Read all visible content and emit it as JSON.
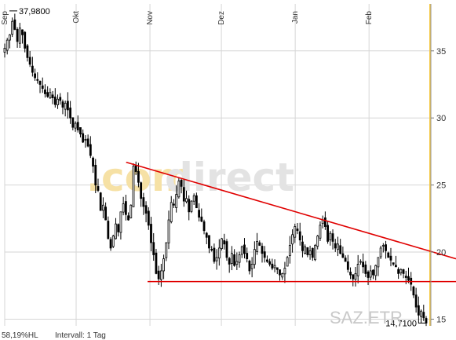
{
  "colors": {
    "candle": "#000000",
    "grid": "#d6d6d6",
    "trendline": "#e00000",
    "now_marker": "#f5c842",
    "watermark_a": "#f6e1a5",
    "watermark_b": "#e3e3e3"
  },
  "watermark": {
    "part1": ".com",
    "part2": "direct"
  },
  "symbol_label": "SAZ.ETR",
  "footer": {
    "performance": "58,19%HL",
    "interval": "Intervall: 1 Tag"
  },
  "chart_data": {
    "type": "candlestick",
    "title": "",
    "xlabel": "",
    "ylabel": "",
    "ylim": [
      14.5,
      38.5
    ],
    "y_ticks": [
      15,
      20,
      25,
      30,
      35
    ],
    "y_tick_labels": [
      "15",
      "20",
      "25",
      "30",
      "35"
    ],
    "x_range_days": [
      0,
      177
    ],
    "month_ticks": [
      {
        "label": "Sep",
        "day": 0
      },
      {
        "label": "Okt",
        "day": 30
      },
      {
        "label": "Nov",
        "day": 61
      },
      {
        "label": "Dez",
        "day": 91
      },
      {
        "label": "Jan",
        "day": 122
      },
      {
        "label": "Feb",
        "day": 153
      }
    ],
    "high_label": "37,9800",
    "high_value": 37.98,
    "low_label": "14,7100",
    "low_value": 14.71,
    "trendlines": [
      {
        "name": "resistance",
        "x": [
          51,
          177
        ],
        "y": [
          26.7,
          19.5
        ]
      },
      {
        "name": "support",
        "x": [
          60,
          177
        ],
        "y": [
          17.8,
          17.8
        ]
      }
    ],
    "closes": [
      35.2,
      35.8,
      36.2,
      37.2,
      36.6,
      35.7,
      36.7,
      36.2,
      35.2,
      34.5,
      34.0,
      33.4,
      33.0,
      32.8,
      32.5,
      32.2,
      31.8,
      31.6,
      31.9,
      31.5,
      31.0,
      31.4,
      31.3,
      30.8,
      31.1,
      30.6,
      30.0,
      29.3,
      29.6,
      29.1,
      28.8,
      28.2,
      28.4,
      27.9,
      27.2,
      26.4,
      25.0,
      24.6,
      23.1,
      23.5,
      22.4,
      21.0,
      20.3,
      21.2,
      22.1,
      21.5,
      23.0,
      23.6,
      22.8,
      22.4,
      23.5,
      26.4,
      26.0,
      25.2,
      24.0,
      23.4,
      22.9,
      22.0,
      20.7,
      19.8,
      18.4,
      18.0,
      18.6,
      19.5,
      20.7,
      22.4,
      23.7,
      23.5,
      24.3,
      25.3,
      24.9,
      23.8,
      24.0,
      23.0,
      23.8,
      24.2,
      23.3,
      22.6,
      22.3,
      21.6,
      21.1,
      20.3,
      20.2,
      19.3,
      19.6,
      20.3,
      21.0,
      20.6,
      19.6,
      19.1,
      19.9,
      19.0,
      19.3,
      19.8,
      20.4,
      19.9,
      19.5,
      18.6,
      19.1,
      20.2,
      20.8,
      20.5,
      19.9,
      19.6,
      19.3,
      19.1,
      18.8,
      19.0,
      18.7,
      18.3,
      18.4,
      18.8,
      19.6,
      20.5,
      21.3,
      21.9,
      21.6,
      20.9,
      20.1,
      20.4,
      19.8,
      20.1,
      19.6,
      20.5,
      21.2,
      22.0,
      22.4,
      21.9,
      20.8,
      21.4,
      20.8,
      20.3,
      20.6,
      19.9,
      19.6,
      19.3,
      18.7,
      18.3,
      18.0,
      18.4,
      19.1,
      19.3,
      18.9,
      18.4,
      18.1,
      18.6,
      18.3,
      19.0,
      19.6,
      20.3,
      20.5,
      20.1,
      19.6,
      19.4,
      19.1,
      18.9,
      18.4,
      18.7,
      18.4,
      18.1,
      17.9,
      17.6,
      16.8,
      15.9,
      15.3,
      15.6,
      15.1,
      14.71
    ]
  }
}
